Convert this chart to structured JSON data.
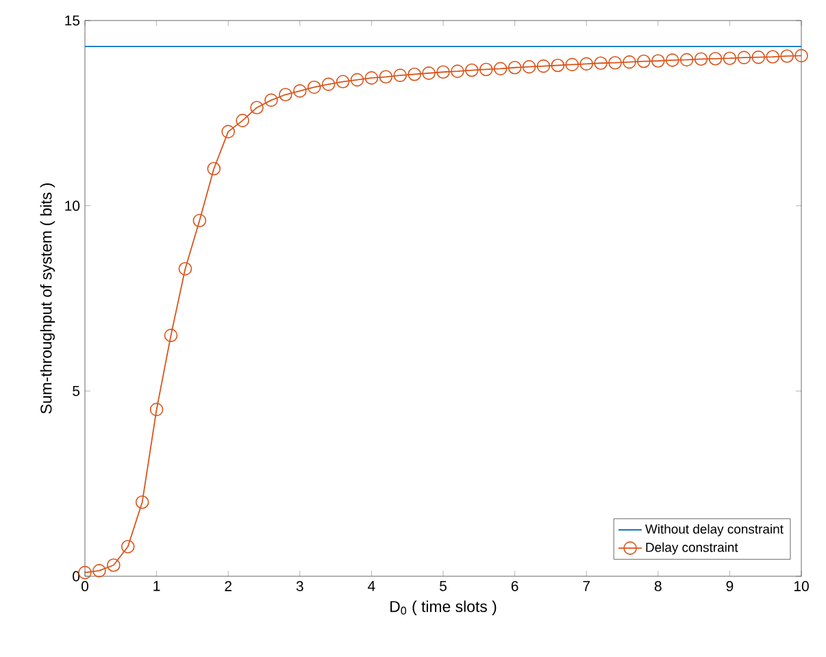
{
  "chart_data": {
    "type": "line",
    "xlabel": "D$_{0}$ ( time slots )",
    "ylabel": "Sum-throughput of system ( bits )",
    "xlim": [
      0,
      10
    ],
    "ylim": [
      0,
      15
    ],
    "xticks": [
      0,
      1,
      2,
      3,
      4,
      5,
      6,
      7,
      8,
      9,
      10
    ],
    "yticks": [
      0,
      5,
      10,
      15
    ],
    "grid": false,
    "legend": "bottom right",
    "series": [
      {
        "name": "Without delay constraint",
        "color": "#0072bd",
        "marker": "none",
        "x": [
          0,
          10
        ],
        "values": [
          14.3,
          14.3
        ]
      },
      {
        "name": "Delay constraint",
        "color": "#d95319",
        "marker": "circle",
        "x": [
          0,
          0.2,
          0.4,
          0.6,
          0.8,
          1.0,
          1.2,
          1.4,
          1.6,
          1.8,
          2.0,
          2.2,
          2.4,
          2.6,
          2.8,
          3.0,
          3.2,
          3.4,
          3.6,
          3.8,
          4.0,
          4.2,
          4.4,
          4.6,
          4.8,
          5.0,
          5.2,
          5.4,
          5.6,
          5.8,
          6.0,
          6.2,
          6.4,
          6.6,
          6.8,
          7.0,
          7.2,
          7.4,
          7.6,
          7.8,
          8.0,
          8.2,
          8.4,
          8.6,
          8.8,
          9.0,
          9.2,
          9.4,
          9.6,
          9.8,
          10.0
        ],
        "values": [
          0.1,
          0.15,
          0.3,
          0.8,
          2.0,
          4.5,
          6.5,
          8.3,
          9.6,
          11.0,
          12.0,
          12.3,
          12.65,
          12.85,
          13.0,
          13.1,
          13.2,
          13.28,
          13.35,
          13.4,
          13.45,
          13.48,
          13.52,
          13.55,
          13.58,
          13.61,
          13.63,
          13.66,
          13.68,
          13.7,
          13.73,
          13.75,
          13.77,
          13.79,
          13.81,
          13.83,
          13.85,
          13.86,
          13.88,
          13.9,
          13.91,
          13.93,
          13.94,
          13.96,
          13.97,
          13.98,
          14.0,
          14.01,
          14.02,
          14.04,
          14.05
        ]
      }
    ]
  }
}
